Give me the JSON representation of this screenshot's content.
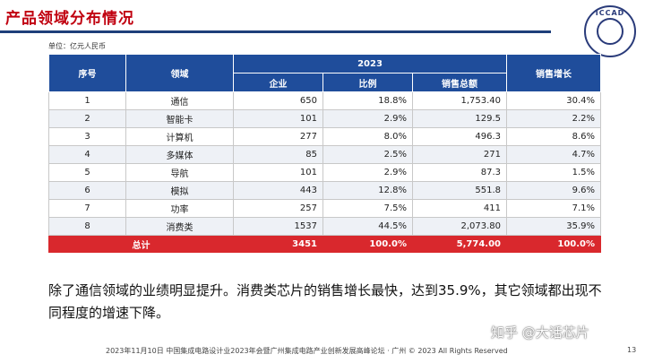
{
  "header": {
    "title": "产品领域分布情况"
  },
  "logo": {
    "text": "ICCAD"
  },
  "unit_label": "单位：亿元人民币",
  "table": {
    "col_index": "序号",
    "col_field": "领域",
    "year_group": "2023",
    "col_enterprise": "企业",
    "col_ratio": "比例",
    "col_sales": "销售总额",
    "col_growth": "销售增长",
    "rows": [
      {
        "index": "1",
        "field": "通信",
        "enterprise": "650",
        "ratio": "18.8%",
        "sales": "1,753.40",
        "growth": "30.4%"
      },
      {
        "index": "2",
        "field": "智能卡",
        "enterprise": "101",
        "ratio": "2.9%",
        "sales": "129.5",
        "growth": "2.2%"
      },
      {
        "index": "3",
        "field": "计算机",
        "enterprise": "277",
        "ratio": "8.0%",
        "sales": "496.3",
        "growth": "8.6%"
      },
      {
        "index": "4",
        "field": "多媒体",
        "enterprise": "85",
        "ratio": "2.5%",
        "sales": "271",
        "growth": "4.7%"
      },
      {
        "index": "5",
        "field": "导航",
        "enterprise": "101",
        "ratio": "2.9%",
        "sales": "87.3",
        "growth": "1.5%"
      },
      {
        "index": "6",
        "field": "模拟",
        "enterprise": "443",
        "ratio": "12.8%",
        "sales": "551.8",
        "growth": "9.6%"
      },
      {
        "index": "7",
        "field": "功率",
        "enterprise": "257",
        "ratio": "7.5%",
        "sales": "411",
        "growth": "7.1%"
      },
      {
        "index": "8",
        "field": "消费类",
        "enterprise": "1537",
        "ratio": "44.5%",
        "sales": "2,073.80",
        "growth": "35.9%"
      }
    ],
    "total": {
      "label": "总计",
      "enterprise": "3451",
      "ratio": "100.0%",
      "sales": "5,774.00",
      "growth": "100.0%"
    }
  },
  "summary": "除了通信领域的业绩明显提升。消费类芯片的销售增长最快，达到35.9%，其它领域都出现不同程度的增速下降。",
  "footer": "2023年11月10日  中国集成电路设计业2023年会暨广州集成电路产业创新发展高峰论坛 · 广州 © 2023 All Rights Reserved",
  "page_number": "13",
  "watermark": "知乎 @大话芯片"
}
